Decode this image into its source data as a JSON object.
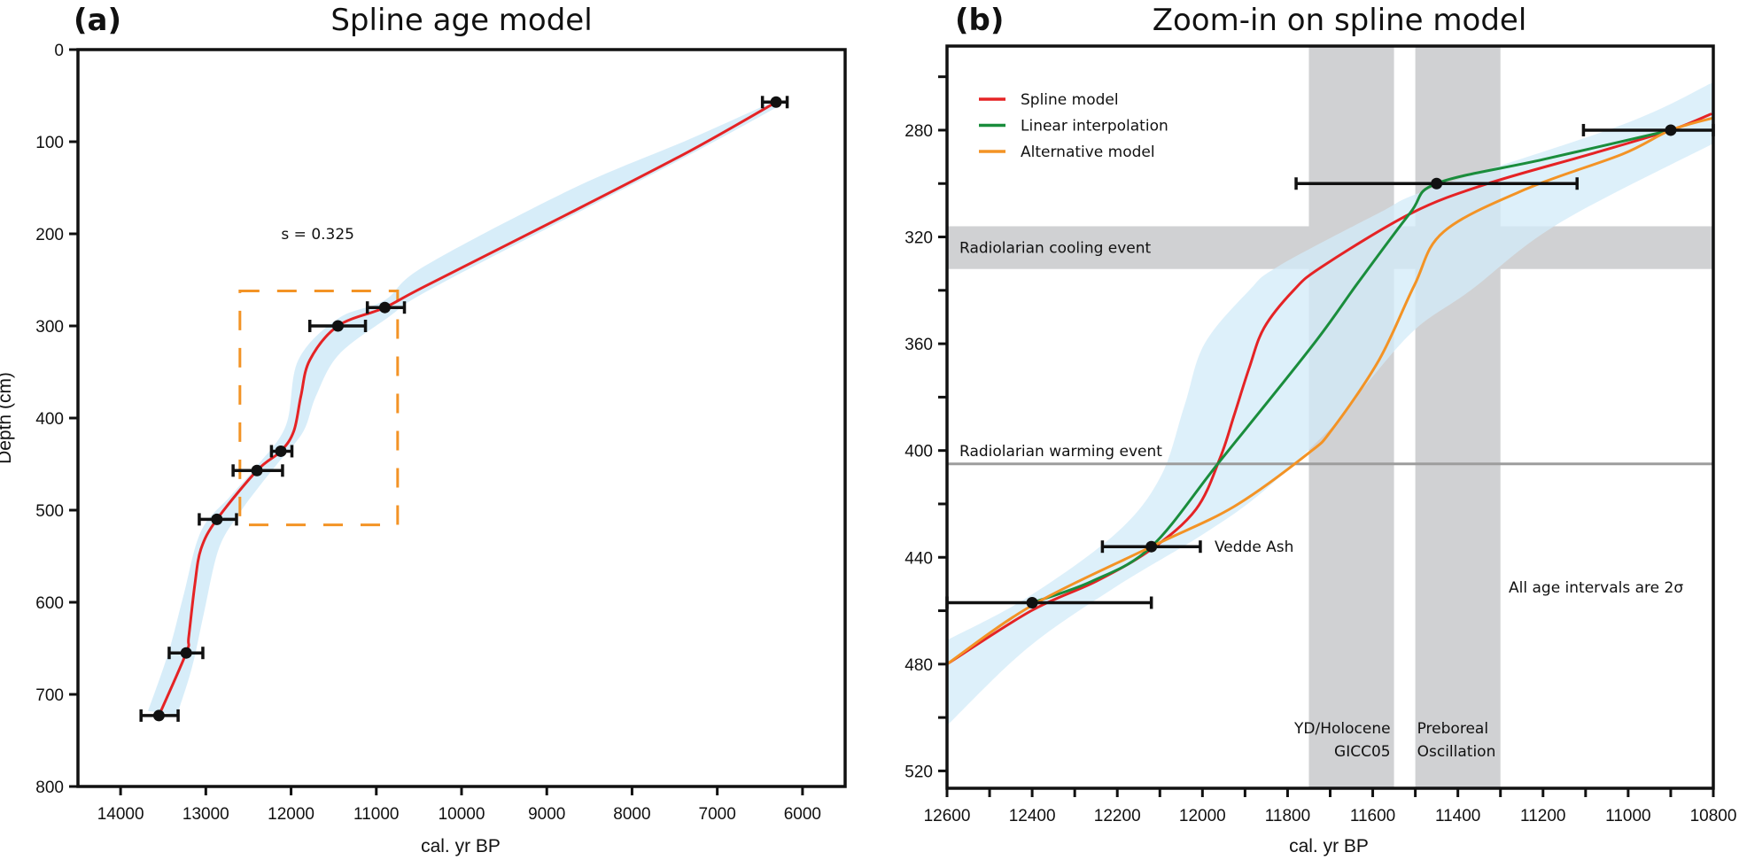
{
  "chart_data": [
    {
      "panel_letter": "(a)",
      "title": "Spline age model",
      "type": "line",
      "xlabel": "cal. yr BP",
      "ylabel": "Depth (cm)",
      "xlim": [
        14500,
        5500
      ],
      "ylim": [
        0,
        800
      ],
      "x_reversed": true,
      "y_inverted": true,
      "x_ticks": [
        14000,
        13000,
        12000,
        11000,
        10000,
        9000,
        8000,
        7000,
        6000
      ],
      "y_ticks": [
        0,
        100,
        200,
        300,
        400,
        500,
        600,
        700,
        800
      ],
      "grid": false,
      "annotations": [
        {
          "text": "s = 0.325",
          "x": 11700,
          "y": 200
        }
      ],
      "zoom_box": {
        "x": [
          12600,
          10750
        ],
        "y": [
          262,
          516
        ],
        "color": "#f39325"
      },
      "dates": [
        {
          "age": 6310,
          "depth": 57,
          "err_min": 6180,
          "err_max": 6470
        },
        {
          "age": 10900,
          "depth": 280,
          "err_min": 10670,
          "err_max": 11105
        },
        {
          "age": 11450,
          "depth": 300,
          "err_min": 11127,
          "err_max": 11780
        },
        {
          "age": 12120,
          "depth": 436,
          "err_min": 11990,
          "err_max": 12230
        },
        {
          "age": 12400,
          "depth": 457,
          "err_min": 12100,
          "err_max": 12680
        },
        {
          "age": 12870,
          "depth": 510,
          "err_min": 12640,
          "err_max": 13077
        },
        {
          "age": 13230,
          "depth": 655,
          "err_min": 13035,
          "err_max": 13430
        },
        {
          "age": 13550,
          "depth": 723,
          "err_min": 13325,
          "err_max": 13760
        }
      ],
      "series": [
        {
          "name": "Spline model",
          "color": "#e52325",
          "x": [
            6310,
            7320,
            8700,
            10430,
            10900,
            11450,
            11780,
            11884,
            11967,
            12120,
            12400,
            12870,
            13056,
            13129,
            13201,
            13230,
            13550
          ],
          "y": [
            57,
            110,
            176,
            257,
            280,
            300,
            337,
            376,
            414,
            436,
            457,
            510,
            542,
            581,
            638,
            655,
            723
          ]
        }
      ],
      "confidence_band": {
        "color": "#d3ebf8",
        "upper_edge": {
          "x": [
            6310,
            7320,
            8699,
            10432,
            10900,
            11450,
            11915,
            12060,
            12400,
            12714,
            13056,
            13263,
            13440,
            13678
          ],
          "y": [
            55,
            97,
            151,
            235,
            272,
            292,
            337,
            408,
            452,
            485,
            523,
            593,
            655,
            718
          ]
        },
        "lower_edge": {
          "x": [
            13336,
            13160,
            13025,
            12849,
            12610,
            12380,
            12120,
            11853,
            11707,
            11438,
            10850,
            10400,
            8700,
            7300,
            6250
          ],
          "y": [
            722,
            670,
            613,
            542,
            504,
            475,
            445,
            414,
            376,
            331,
            290,
            262,
            180,
            113,
            60
          ]
        }
      }
    },
    {
      "panel_letter": "(b)",
      "title": "Zoom-in on spline model",
      "type": "line",
      "xlabel": "cal. yr BP",
      "ylabel": "",
      "xlim": [
        12600,
        10800
      ],
      "ylim": [
        248.5,
        526.5
      ],
      "x_reversed": true,
      "y_inverted": true,
      "x_ticks": [
        12600,
        12400,
        12200,
        12000,
        11800,
        11600,
        11400,
        11200,
        11000,
        10800
      ],
      "x_minor_ticks": [
        12500,
        12300,
        12100,
        11900,
        11700,
        11500,
        11300,
        11100,
        10900
      ],
      "y_ticks": [
        280,
        320,
        360,
        400,
        440,
        480,
        520
      ],
      "y_minor_ticks": [
        260,
        300,
        340,
        380,
        420,
        460,
        500
      ],
      "grid": false,
      "legend": {
        "position": "top-left",
        "entries": [
          "Spline model",
          "Linear interpolation",
          "Alternative model"
        ]
      },
      "vertical_bands": [
        {
          "label_lines": [
            "YD/Holocene",
            "GICC05"
          ],
          "x": [
            11750,
            11550
          ],
          "align": "right"
        },
        {
          "label_lines": [
            "Preboreal",
            "Oscillation"
          ],
          "x": [
            11500,
            11300
          ],
          "align": "left"
        }
      ],
      "horizontal_bands": [
        {
          "label": "Radiolarian cooling event",
          "y": [
            316,
            332
          ]
        }
      ],
      "horizontal_lines": [
        {
          "label": "Radiolarian warming event",
          "y": 405
        }
      ],
      "annotations": [
        {
          "text": "Vedde Ash",
          "x": 11930,
          "y": 436
        },
        {
          "text": "All age intervals are 2σ",
          "x": 11270,
          "y": 458
        }
      ],
      "dates": [
        {
          "age": 10900,
          "depth": 280,
          "err_min": 10800,
          "err_max": 11105
        },
        {
          "age": 11450,
          "depth": 300,
          "err_min": 11120,
          "err_max": 11780
        },
        {
          "age": 12120,
          "depth": 436,
          "err_min": 12005,
          "err_max": 12235
        },
        {
          "age": 12400,
          "depth": 457,
          "err_min": 12120,
          "err_max": 12600
        }
      ],
      "series": [
        {
          "name": "Spline model",
          "color": "#e52325",
          "x": [
            12600,
            12402,
            12250,
            12120,
            12015,
            11959,
            11926,
            11890,
            11855,
            11786,
            11718,
            11508,
            11329,
            11089,
            10900,
            10806
          ],
          "y": [
            480,
            460,
            449,
            437,
            422,
            403,
            387,
            369,
            354,
            340,
            331,
            311,
            300,
            289,
            280,
            274
          ]
        },
        {
          "name": "Linear interpolation",
          "color": "#1a8d3c",
          "x": [
            12400,
            12260,
            12120,
            11959,
            11743,
            11634,
            11512,
            11450,
            11200,
            10900
          ],
          "y": [
            457,
            449,
            436,
            404,
            361,
            337,
            311,
            300,
            291,
            280
          ]
        },
        {
          "name": "Alternative model",
          "color": "#f39325",
          "x": [
            12600,
            12400,
            12120,
            11926,
            11751,
            11695,
            11585,
            11502,
            11433,
            11239,
            11014,
            10900,
            10790
          ],
          "y": [
            480,
            458,
            436,
            421,
            401,
            392,
            366,
            338,
            318,
            302,
            289,
            280,
            275
          ]
        }
      ],
      "confidence_band": {
        "color": "#d3ebf8",
        "upper_edge": {
          "x": [
            12600,
            12411,
            12203,
            12099,
            12042,
            11995,
            11890,
            11822,
            11585,
            11464,
            11014,
            10800
          ],
          "y": [
            471,
            455,
            431,
            410,
            383,
            360,
            340,
            331,
            311,
            302,
            278,
            262
          ]
        },
        "lower_edge": {
          "x": [
            10800,
            11164,
            11370,
            11503,
            11624,
            11682,
            11855,
            11995,
            12203,
            12411,
            12600
          ],
          "y": [
            285,
            315,
            340,
            355,
            377,
            389,
            415,
            431,
            451,
            474,
            503
          ]
        }
      }
    }
  ]
}
